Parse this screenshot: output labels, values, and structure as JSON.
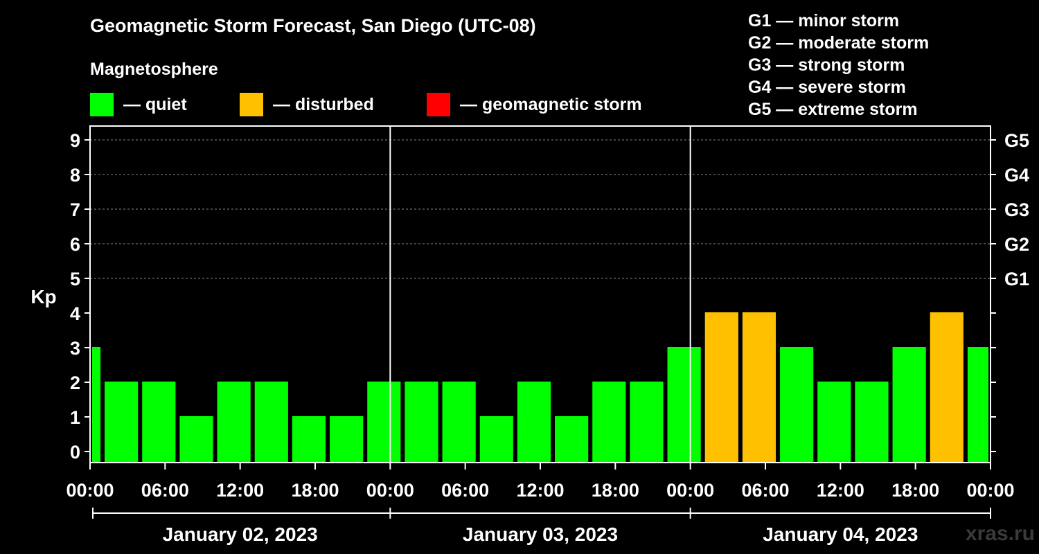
{
  "header": {
    "title": "Geomagnetic Storm Forecast, San Diego (UTC-08)",
    "subtitle": "Magnetosphere"
  },
  "legend": [
    {
      "label": "— quiet",
      "color": "#00ff00"
    },
    {
      "label": "— disturbed",
      "color": "#ffc000"
    },
    {
      "label": "— geomagnetic storm",
      "color": "#ff0000"
    }
  ],
  "storm_scale": [
    "G1 — minor storm",
    "G2 — moderate storm",
    "G3 — strong storm",
    "G4 — severe storm",
    "G5 — extreme storm"
  ],
  "watermark": "xras.ru",
  "chart_data": {
    "type": "bar",
    "title": "Geomagnetic Storm Forecast, San Diego (UTC-08)",
    "ylabel": "Kp",
    "ylim": [
      0,
      9
    ],
    "y_ticks": [
      "0",
      "1",
      "2",
      "3",
      "4",
      "5",
      "6",
      "7",
      "8",
      "9"
    ],
    "right_ticks": [
      {
        "kp": 5,
        "label": "G1"
      },
      {
        "kp": 6,
        "label": "G2"
      },
      {
        "kp": 7,
        "label": "G3"
      },
      {
        "kp": 8,
        "label": "G4"
      },
      {
        "kp": 9,
        "label": "G5"
      }
    ],
    "x_range_hours": [
      0,
      72
    ],
    "x_ticks": [
      {
        "hour": 0,
        "label": "00:00"
      },
      {
        "hour": 6,
        "label": "06:00"
      },
      {
        "hour": 12,
        "label": "12:00"
      },
      {
        "hour": 18,
        "label": "18:00"
      },
      {
        "hour": 24,
        "label": "00:00"
      },
      {
        "hour": 30,
        "label": "06:00"
      },
      {
        "hour": 36,
        "label": "12:00"
      },
      {
        "hour": 42,
        "label": "18:00"
      },
      {
        "hour": 48,
        "label": "00:00"
      },
      {
        "hour": 54,
        "label": "06:00"
      },
      {
        "hour": 60,
        "label": "12:00"
      },
      {
        "hour": 66,
        "label": "18:00"
      },
      {
        "hour": 72,
        "label": "00:00"
      }
    ],
    "day_dividers_hours": [
      24,
      48
    ],
    "days": [
      {
        "label": "January 02, 2023",
        "start": 0,
        "end": 24
      },
      {
        "label": "January 03, 2023",
        "start": 24,
        "end": 48
      },
      {
        "label": "January 04, 2023",
        "start": 48,
        "end": 72
      }
    ],
    "color_thresholds": {
      "quiet_max": 3,
      "disturbed_max": 4
    },
    "bars": [
      {
        "start": 0,
        "end": 1,
        "kp": 3
      },
      {
        "start": 1,
        "end": 4,
        "kp": 2
      },
      {
        "start": 4,
        "end": 7,
        "kp": 2
      },
      {
        "start": 7,
        "end": 10,
        "kp": 1
      },
      {
        "start": 10,
        "end": 13,
        "kp": 2
      },
      {
        "start": 13,
        "end": 16,
        "kp": 2
      },
      {
        "start": 16,
        "end": 19,
        "kp": 1
      },
      {
        "start": 19,
        "end": 22,
        "kp": 1
      },
      {
        "start": 22,
        "end": 25,
        "kp": 2
      },
      {
        "start": 25,
        "end": 28,
        "kp": 2
      },
      {
        "start": 28,
        "end": 31,
        "kp": 2
      },
      {
        "start": 31,
        "end": 34,
        "kp": 1
      },
      {
        "start": 34,
        "end": 37,
        "kp": 2
      },
      {
        "start": 37,
        "end": 40,
        "kp": 1
      },
      {
        "start": 40,
        "end": 43,
        "kp": 2
      },
      {
        "start": 43,
        "end": 46,
        "kp": 2
      },
      {
        "start": 46,
        "end": 49,
        "kp": 3
      },
      {
        "start": 49,
        "end": 52,
        "kp": 4
      },
      {
        "start": 52,
        "end": 55,
        "kp": 4
      },
      {
        "start": 55,
        "end": 58,
        "kp": 3
      },
      {
        "start": 58,
        "end": 61,
        "kp": 2
      },
      {
        "start": 61,
        "end": 64,
        "kp": 2
      },
      {
        "start": 64,
        "end": 67,
        "kp": 3
      },
      {
        "start": 67,
        "end": 70,
        "kp": 4
      },
      {
        "start": 70,
        "end": 72,
        "kp": 3
      }
    ]
  }
}
